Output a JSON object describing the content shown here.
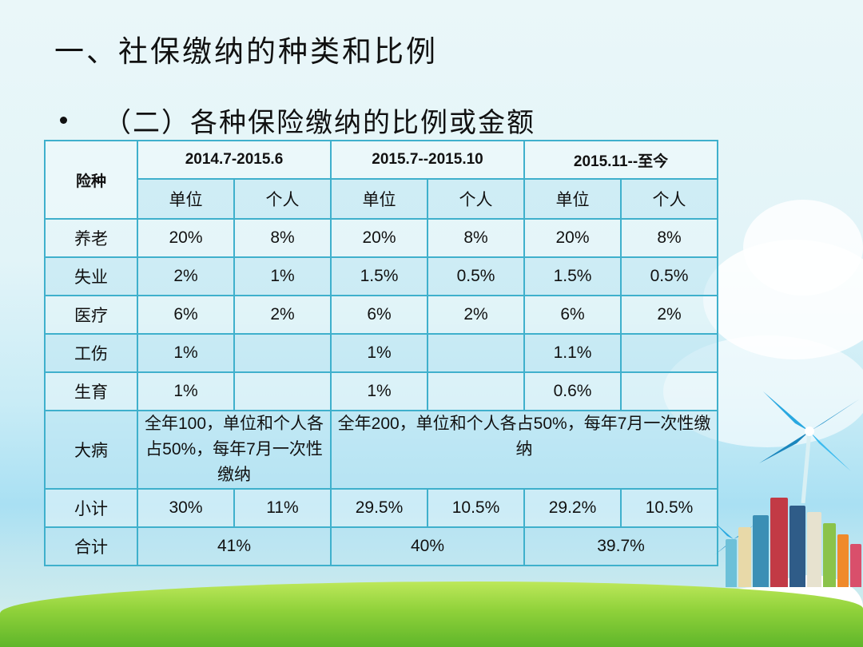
{
  "slide": {
    "title": "一、社保缴纳的种类和比例",
    "subtitle": "（二）各种保险缴纳的比例或金额"
  },
  "table": {
    "corner_label": "险种",
    "periods": [
      "2014.7-2015.6",
      "2015.7--2015.10",
      "2015.11--至今"
    ],
    "sub_headers": [
      "单位",
      "个人",
      "单位",
      "个人",
      "单位",
      "个人"
    ],
    "rows": [
      {
        "name": "养老",
        "values": [
          "20%",
          "8%",
          "20%",
          "8%",
          "20%",
          "8%"
        ]
      },
      {
        "name": "失业",
        "values": [
          "2%",
          "1%",
          "1.5%",
          "0.5%",
          "1.5%",
          "0.5%"
        ]
      },
      {
        "name": "医疗",
        "values": [
          "6%",
          "2%",
          "6%",
          "2%",
          "6%",
          "2%"
        ]
      },
      {
        "name": "工伤",
        "values": [
          "1%",
          "",
          "1%",
          "",
          "1.1%",
          ""
        ]
      },
      {
        "name": "生育",
        "values": [
          "1%",
          "",
          "1%",
          "",
          "0.6%",
          ""
        ]
      }
    ],
    "critical_illness": {
      "name": "大病",
      "period1_note": "全年100，单位和个人各占50%，每年7月一次性缴纳",
      "period23_note": "全年200，单位和个人各占50%，每年7月一次性缴纳"
    },
    "subtotal": {
      "name": "小计",
      "values": [
        "30%",
        "11%",
        "29.5%",
        "10.5%",
        "29.2%",
        "10.5%"
      ]
    },
    "total": {
      "name": "合计",
      "values": [
        "41%",
        "40%",
        "39.7%"
      ]
    }
  },
  "decor": {
    "border_color": "#3fb0cc",
    "pinwheel_color": "#29a8e0",
    "grass_color": "#7cc63a"
  }
}
